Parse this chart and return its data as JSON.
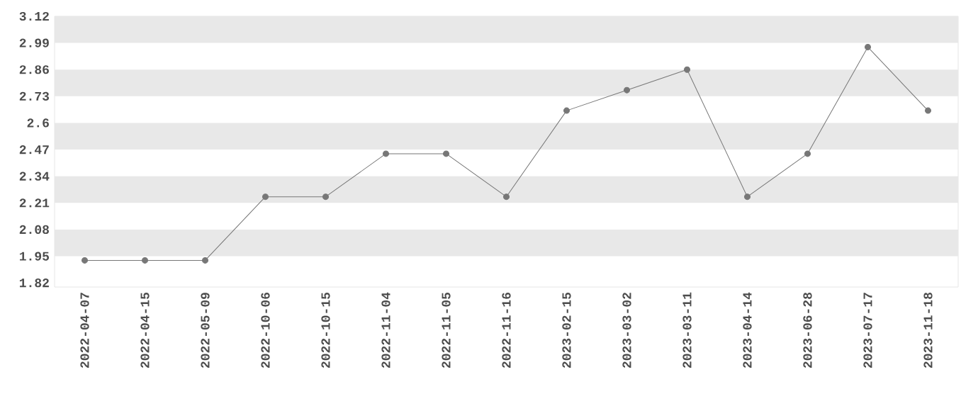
{
  "chart_data": {
    "type": "line",
    "categories": [
      "2022-04-07",
      "2022-04-15",
      "2022-05-09",
      "2022-10-06",
      "2022-10-15",
      "2022-11-04",
      "2022-11-05",
      "2022-11-16",
      "2023-02-15",
      "2023-03-02",
      "2023-03-11",
      "2023-04-14",
      "2023-06-28",
      "2023-07-17",
      "2023-11-18"
    ],
    "series": [
      {
        "color": "#777777",
        "values": [
          1.93,
          1.93,
          1.93,
          2.24,
          2.24,
          2.45,
          2.45,
          2.24,
          2.66,
          2.76,
          2.86,
          2.24,
          2.45,
          2.97,
          2.66
        ]
      }
    ],
    "ylim": [
      1.8,
      3.12
    ],
    "yticks": [
      1.82,
      1.95,
      2.08,
      2.21,
      2.34,
      2.47,
      2.6,
      2.73,
      2.86,
      2.99,
      3.12
    ],
    "bands": [
      {
        "axis": "y",
        "from": 2.99,
        "to": 3.12,
        "color": "#e8e8e8"
      },
      {
        "axis": "y",
        "from": 2.73,
        "to": 2.86,
        "color": "#e8e8e8"
      },
      {
        "axis": "y",
        "from": 2.47,
        "to": 2.6,
        "color": "#e8e8e8"
      },
      {
        "axis": "y",
        "from": 2.21,
        "to": 2.34,
        "color": "#e8e8e8"
      },
      {
        "axis": "y",
        "from": 1.95,
        "to": 2.08,
        "color": "#e8e8e8"
      }
    ],
    "marker": "circle",
    "line_style": "solid"
  }
}
